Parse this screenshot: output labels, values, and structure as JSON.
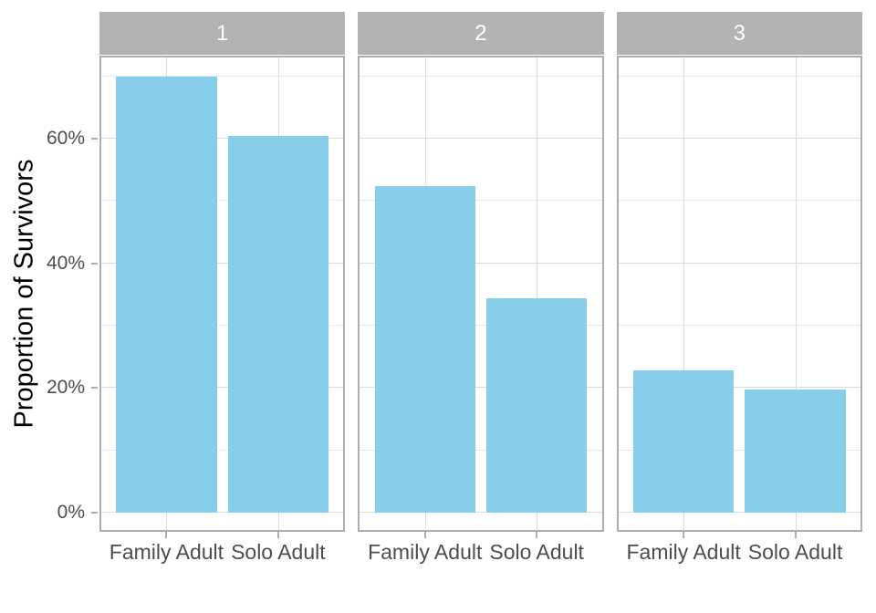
{
  "chart_data": {
    "type": "bar",
    "title": "",
    "xlabel": "",
    "ylabel": "Proportion of Survivors",
    "categories": [
      "Family Adult",
      "Solo Adult"
    ],
    "facets": [
      {
        "label": "1",
        "values": [
          0.7,
          0.604
        ]
      },
      {
        "label": "2",
        "values": [
          0.524,
          0.343
        ]
      },
      {
        "label": "3",
        "values": [
          0.228,
          0.197
        ]
      }
    ],
    "y_ticks": [
      {
        "value": 0.0,
        "label": "0%"
      },
      {
        "value": 0.2,
        "label": "20%"
      },
      {
        "value": 0.4,
        "label": "40%"
      },
      {
        "value": 0.6,
        "label": "60%"
      }
    ],
    "y_minor_ticks": [
      0.1,
      0.3,
      0.5,
      0.7
    ],
    "ylim": [
      -0.031,
      0.733
    ],
    "grid": true,
    "legend": "none",
    "colors": {
      "bar_fill": "#87CEEB",
      "strip_background": "#B2B2B2",
      "strip_text": "#FFFFFF",
      "panel_border": "#ADADAD",
      "grid_major": "#DCDCDC",
      "grid_minor": "#E6E6E6",
      "tick_mark": "#ADADAD",
      "axis_text": "#4D4D4D",
      "axis_title": "#000000",
      "background": "#FFFFFF"
    }
  }
}
